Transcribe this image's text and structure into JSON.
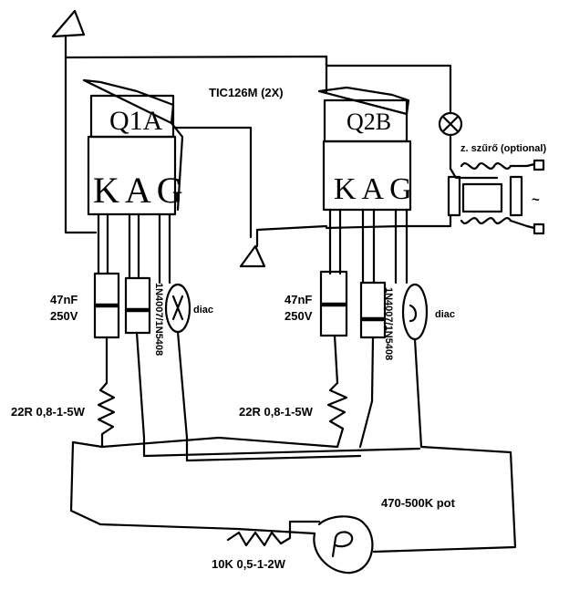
{
  "labels": {
    "triac_title": "TIC126M (2X)",
    "triac_a_name": "Q1A",
    "triac_b_name": "Q2B",
    "pins_a": "KAG",
    "pins_b": "KAG",
    "filter": "z. szűrő (optional)",
    "ac_symbol": "~",
    "cap_a_value": "47nF",
    "cap_a_voltage": "250V",
    "cap_b_value": "47nF",
    "cap_b_voltage": "250V",
    "diode_a": "1N4007/1N5408",
    "diode_b": "1N4007/1N5408",
    "diac_a": "diac",
    "diac_b": "diac",
    "res_a": "22R 0,8-1-5W",
    "res_b": "22R 0,8-1-5W",
    "pot": "470-500K pot",
    "pot_letter": "P",
    "res_series": "10K 0,5-1-2W"
  }
}
